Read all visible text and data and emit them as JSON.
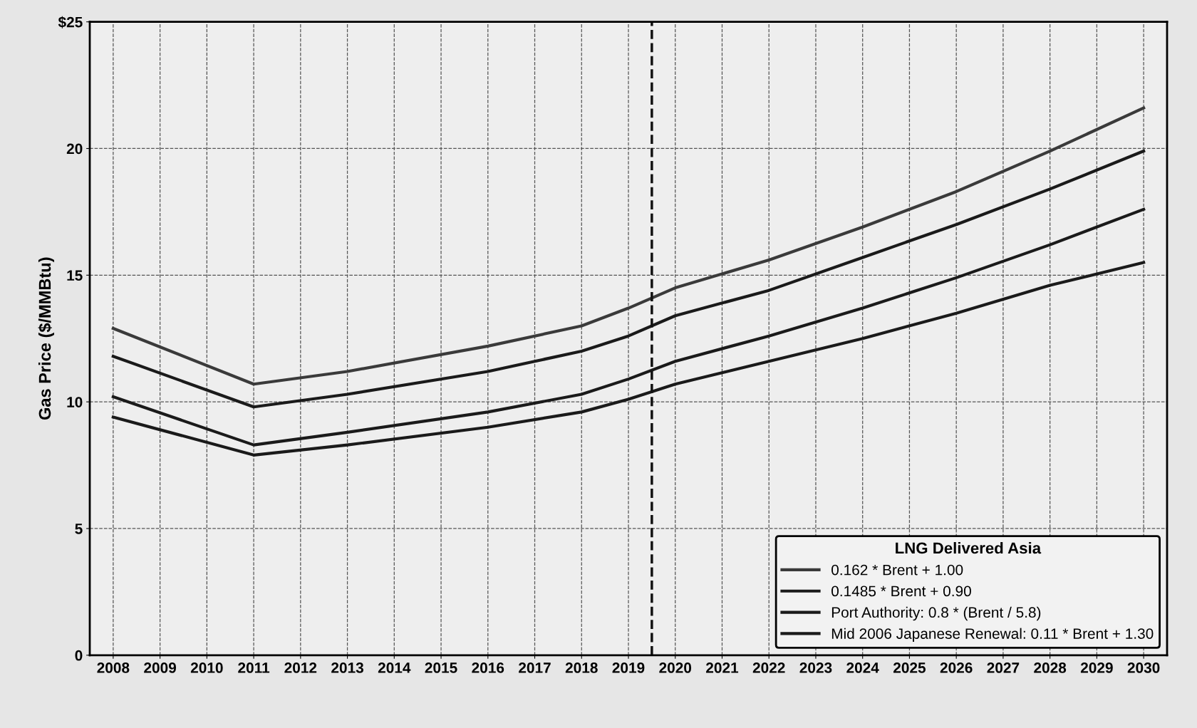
{
  "chart_data": {
    "type": "line",
    "ylabel": "Gas Price ($/MMBtu)",
    "legend_title": "LNG Delivered Asia",
    "x": [
      2008,
      2011,
      2013,
      2016,
      2018,
      2019,
      2020,
      2022,
      2024,
      2026,
      2028,
      2030
    ],
    "series": [
      {
        "name": "0.162 * Brent + 1.00",
        "color": "#3a3a3a",
        "values": [
          12.9,
          10.7,
          11.2,
          12.2,
          13.0,
          13.7,
          14.5,
          15.6,
          16.9,
          18.3,
          19.9,
          21.6
        ]
      },
      {
        "name": "0.1485 * Brent + 0.90",
        "color": "#1a1a1a",
        "values": [
          11.8,
          9.8,
          10.3,
          11.2,
          12.0,
          12.6,
          13.4,
          14.4,
          15.7,
          17.0,
          18.4,
          19.9
        ]
      },
      {
        "name": "Port Authority: 0.8 * (Brent / 5.8)",
        "color": "#1a1a1a",
        "values": [
          10.2,
          8.3,
          8.8,
          9.6,
          10.3,
          10.9,
          11.6,
          12.6,
          13.7,
          14.9,
          16.2,
          17.6
        ]
      },
      {
        "name": "Mid 2006 Japanese Renewal: 0.11 * Brent + 1.30",
        "color": "#1a1a1a",
        "values": [
          9.4,
          7.9,
          8.3,
          9.0,
          9.6,
          10.1,
          10.7,
          11.6,
          12.5,
          13.5,
          14.6,
          15.5
        ]
      }
    ],
    "xlim": [
      2007.5,
      2030.5
    ],
    "xticks": [
      2008,
      2009,
      2010,
      2011,
      2012,
      2013,
      2014,
      2015,
      2016,
      2017,
      2018,
      2019,
      2020,
      2021,
      2022,
      2023,
      2024,
      2025,
      2026,
      2027,
      2028,
      2029,
      2030
    ],
    "ylim": [
      0,
      25
    ],
    "yticks": [
      0,
      5,
      10,
      15,
      20,
      {
        "value": 25,
        "label": "$25"
      }
    ],
    "ref_lines": [
      {
        "axis": "x",
        "value": 2019.5,
        "label": null,
        "color": "#111111",
        "line_style": "dashed"
      }
    ],
    "grid": true,
    "legend": "bottom right",
    "line_style": "solid",
    "marker": "none"
  }
}
